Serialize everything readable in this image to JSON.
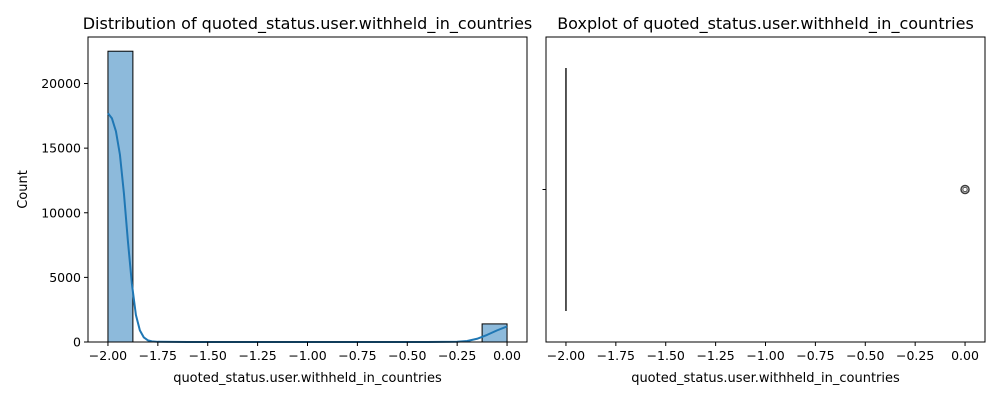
{
  "chart_data": [
    {
      "type": "histogram",
      "title": "Distribution of quoted_status.user.withheld_in_countries",
      "xlabel": "quoted_status.user.withheld_in_countries",
      "ylabel": "Count",
      "xlim": [
        -2.1,
        0.1
      ],
      "ylim": [
        0,
        23600
      ],
      "xticks": [
        -2.0,
        -1.75,
        -1.5,
        -1.25,
        -1.0,
        -0.75,
        -0.5,
        -0.25,
        0.0
      ],
      "xtick_labels": [
        "−2.00",
        "−1.75",
        "−1.50",
        "−1.25",
        "−1.00",
        "−0.75",
        "−0.50",
        "−0.25",
        "0.00"
      ],
      "yticks": [
        0,
        5000,
        10000,
        15000,
        20000
      ],
      "ytick_labels": [
        "0",
        "5000",
        "10000",
        "15000",
        "20000"
      ],
      "bins": [
        {
          "x0": -2.0,
          "x1": -1.875,
          "count": 22500
        },
        {
          "x0": -0.125,
          "x1": 0.0,
          "count": 1400
        }
      ],
      "kde": [
        {
          "x": -2.0,
          "y": 17700
        },
        {
          "x": -1.98,
          "y": 17300
        },
        {
          "x": -1.96,
          "y": 16300
        },
        {
          "x": -1.94,
          "y": 14500
        },
        {
          "x": -1.92,
          "y": 11500
        },
        {
          "x": -1.9,
          "y": 7800
        },
        {
          "x": -1.88,
          "y": 4500
        },
        {
          "x": -1.86,
          "y": 2100
        },
        {
          "x": -1.84,
          "y": 900
        },
        {
          "x": -1.82,
          "y": 350
        },
        {
          "x": -1.8,
          "y": 130
        },
        {
          "x": -1.78,
          "y": 50
        },
        {
          "x": -1.75,
          "y": 15
        },
        {
          "x": -1.6,
          "y": 0
        },
        {
          "x": -0.4,
          "y": 0
        },
        {
          "x": -0.25,
          "y": 20
        },
        {
          "x": -0.2,
          "y": 80
        },
        {
          "x": -0.15,
          "y": 250
        },
        {
          "x": -0.1,
          "y": 550
        },
        {
          "x": -0.05,
          "y": 900
        },
        {
          "x": 0.0,
          "y": 1200
        }
      ],
      "bar_color": "#8dbadb",
      "line_color": "#1f77b4"
    },
    {
      "type": "boxplot",
      "title": "Boxplot of quoted_status.user.withheld_in_countries",
      "xlabel": "quoted_status.user.withheld_in_countries",
      "xlim": [
        -2.1,
        0.1
      ],
      "xticks": [
        -2.0,
        -1.75,
        -1.5,
        -1.25,
        -1.0,
        -0.75,
        -0.5,
        -0.25,
        0.0
      ],
      "xtick_labels": [
        "−2.00",
        "−1.75",
        "−1.50",
        "−1.25",
        "−1.00",
        "−0.75",
        "−0.50",
        "−0.25",
        "0.00"
      ],
      "box": {
        "min": -2.0,
        "q1": -2.0,
        "median": -2.0,
        "q3": -2.0,
        "max": -2.0
      },
      "outliers": [
        0.0
      ]
    }
  ]
}
